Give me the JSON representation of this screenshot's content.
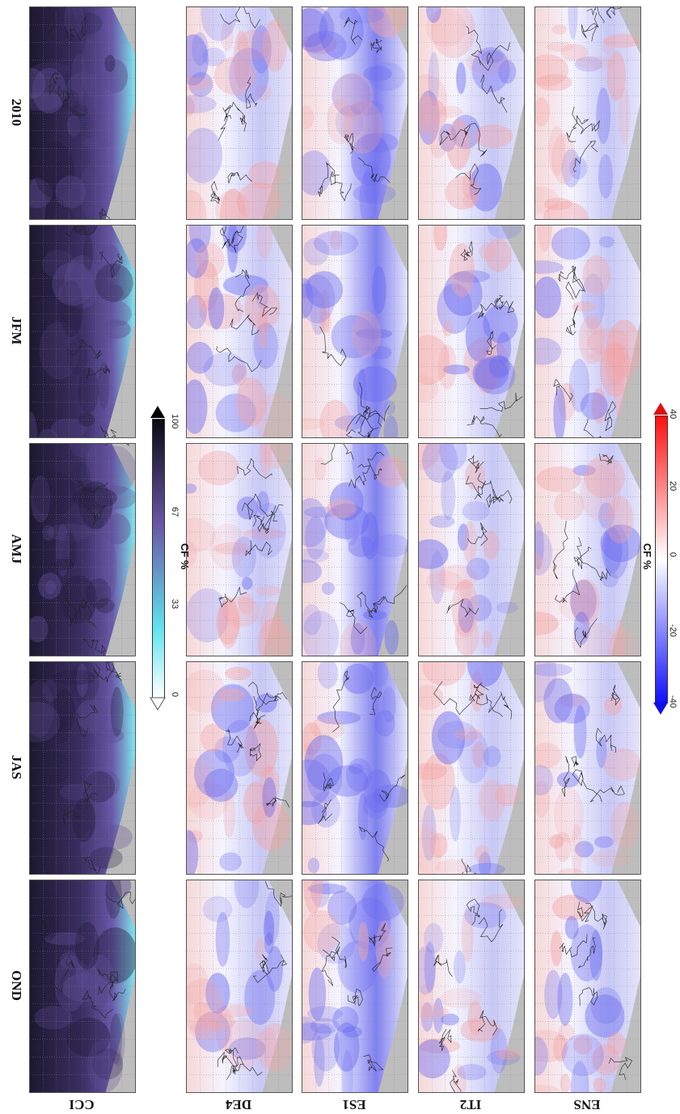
{
  "seasons": [
    "2010",
    "JFM",
    "AMJ",
    "JAS",
    "OND"
  ],
  "models": [
    "CCI",
    "DE4",
    "ES1",
    "IT2",
    "ENS"
  ],
  "cf_colorbar": {
    "title": "CF %",
    "ticks": [
      "0",
      "33",
      "67",
      "100"
    ],
    "colors": [
      "#ffffff",
      "#5fe3ee",
      "#6a57a8",
      "#0b0a14"
    ]
  },
  "bias_colorbar": {
    "title": "CF %",
    "ticks": [
      "-40",
      "-20",
      "0",
      "20",
      "40"
    ],
    "colors": [
      "#1a1aff",
      "#ffffff",
      "#ff1a1a"
    ]
  },
  "panel_colors": {
    "land_mask": "#bdbdbd",
    "cci_dark": "#2a2240",
    "cci_light": "#7fe6ee",
    "bias_neutral": "#f4f4ff",
    "bias_neg": "#6a6af2",
    "bias_pos": "#f5a6a6"
  }
}
